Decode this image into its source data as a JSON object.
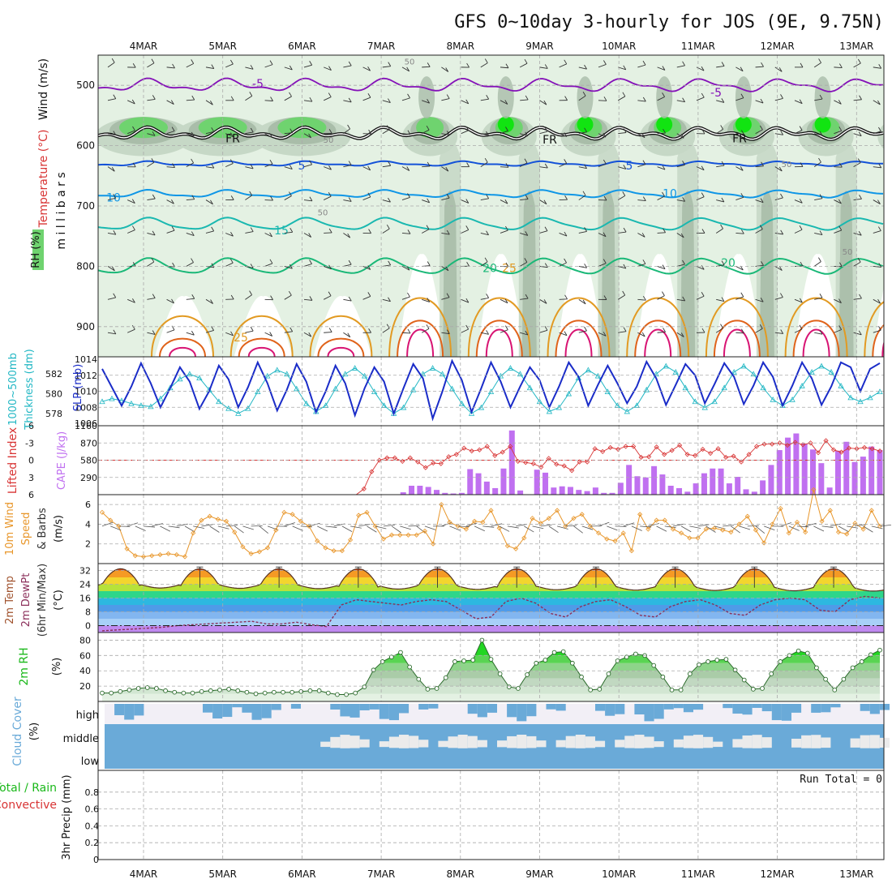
{
  "title": "GFS 0~10day 3-hourly for JOS (9E, 9.75N)",
  "dates": [
    "4MAR",
    "5MAR",
    "6MAR",
    "7MAR",
    "8MAR",
    "9MAR",
    "10MAR",
    "11MAR",
    "12MAR",
    "13MAR"
  ],
  "colors": {
    "rh_light": "#e4f1e3",
    "rh_mid": "#c6d8c6",
    "rh_dark": "#a9bda9",
    "rh_green": "#6fd36f",
    "rh_bright": "#11e411",
    "t_m5": "#8410b8",
    "t_fr": "#111111",
    "t_5": "#1452d8",
    "t_10": "#0f96e6",
    "t_15": "#1ab8b0",
    "t_20": "#1ab878",
    "t_25": "#e29a22",
    "t_30": "#e0631a",
    "t_35": "#d81473",
    "slp": "#1a2cc8",
    "thick": "#22b7c4",
    "li": "#d83434",
    "cape": "#c070f0",
    "wind_speed": "#e8962a",
    "barb": "#555555",
    "rh2m": "#1ab81a",
    "cloud": "#6aaad8"
  },
  "panel_labels": {
    "upper": {
      "wind": "Wind (m/s)",
      "temp": "Temperature (°C)",
      "rh": "RH (%)",
      "axis": "millibars"
    },
    "slp": {
      "left1": "1000~500mb",
      "left2": "Thickness (dm)",
      "right": "SLP (mb)"
    },
    "li_cape": {
      "left": "Lifted Index",
      "right": "CAPE (J/kg)"
    },
    "wind10": {
      "l1": "10m Wind",
      "l2": "Speed",
      "l3": "& Barbs",
      "unit": "(m/s)"
    },
    "temp2m": {
      "l1": "2m Temp",
      "l2": "2m DewPt",
      "l3": "(6hr Min/Max)",
      "unit": "(°C)"
    },
    "rh2m": {
      "l1": "2m RH",
      "unit": "(%)"
    },
    "cloud": {
      "l1": "Cloud Cover",
      "unit": "(%)",
      "high": "high",
      "middle": "middle",
      "low": "low"
    },
    "precip": {
      "l1": "Total / Rain",
      "l2": "Convective",
      "l3": "3hr Precip (mm)",
      "run_total": "Run Total = 0"
    }
  },
  "contour_labels": {
    "m5": "-5",
    "fr": "FR",
    "p5": "5",
    "p10": "10",
    "p15": "15",
    "p20": "20",
    "p25": "25",
    "p50": "50",
    "p30": "30",
    "p70": "70"
  },
  "chart_data": [
    {
      "type": "heatmap",
      "panel": "upper-air",
      "y_axis": {
        "label": "millibars",
        "ticks": [
          500,
          600,
          700,
          800,
          900
        ],
        "range": [
          450,
          950
        ]
      },
      "isotherm_levels_mb": {
        "-5": 500,
        "0": 580,
        "5": 630,
        "10": 680,
        "15": 730,
        "20": 800,
        "25": 860,
        "30": 910
      },
      "rh_levels": [
        30,
        50,
        70,
        90
      ]
    },
    {
      "type": "line",
      "panel": "thickness-slp",
      "left_axis": {
        "label": "1000~500mb Thickness (dm)",
        "ticks": [
          578,
          580,
          582
        ]
      },
      "right_axis": {
        "label": "SLP (mb)",
        "ticks": [
          1006,
          1008,
          1010,
          1012,
          1014
        ],
        "range": [
          1006,
          1014
        ]
      },
      "series": [
        {
          "name": "SLP (mb)",
          "values": [
            1012.8,
            1010.5,
            1008.2,
            1010.6,
            1013.5,
            1011.0,
            1008.0,
            1010.4,
            1013.0,
            1011.2,
            1007.8,
            1010.0,
            1013.2,
            1011.5,
            1008.0,
            1010.5,
            1013.6,
            1011.0,
            1007.6,
            1010.2,
            1013.4,
            1011.2,
            1007.4,
            1010.0,
            1013.2,
            1011.0,
            1007.0,
            1010.4,
            1013.0,
            1011.2,
            1007.2,
            1010.4,
            1013.4,
            1011.6,
            1006.6,
            1010.0,
            1013.8,
            1011.4,
            1007.4,
            1010.4,
            1013.6,
            1011.2,
            1008.0,
            1010.6,
            1013.0,
            1011.4,
            1008.0,
            1010.6,
            1013.6,
            1011.8,
            1008.2,
            1010.8,
            1013.2,
            1011.0,
            1008.5,
            1010.6,
            1013.7,
            1011.6,
            1008.3,
            1010.8,
            1013.4,
            1012.0,
            1008.5,
            1010.9,
            1013.5,
            1011.8,
            1008.4,
            1010.7,
            1013.6,
            1011.8,
            1008.2,
            1010.7,
            1013.6,
            1011.6,
            1008.3,
            1010.6,
            1013.6,
            1013.0,
            1010.0,
            1012.8,
            1013.5
          ]
        },
        {
          "name": "1000~500mb Thickness (dm)",
          "values": [
            579.2,
            579.5,
            579.3,
            579.0,
            578.8,
            578.7,
            579.5,
            580.6,
            581.5,
            582.0,
            581.6,
            580.4,
            579.2,
            578.5,
            578.0,
            578.5,
            580.2,
            581.8,
            582.4,
            582.0,
            580.5,
            579.0,
            578.2,
            578.8,
            580.5,
            582.0,
            582.6,
            581.8,
            580.2,
            578.8,
            578.0,
            578.6,
            580.4,
            582.0,
            582.6,
            582.0,
            580.5,
            579.0,
            578.0,
            578.6,
            580.2,
            581.8,
            582.6,
            582.0,
            580.6,
            579.2,
            578.2,
            578.6,
            580.0,
            581.6,
            582.4,
            581.8,
            580.2,
            578.8,
            578.2,
            578.8,
            580.4,
            582.0,
            582.8,
            582.2,
            580.6,
            579.2,
            578.6,
            579.2,
            580.6,
            582.2,
            582.8,
            582.0,
            580.6,
            579.4,
            578.8,
            579.4,
            580.8,
            582.2,
            582.8,
            582.2,
            580.8,
            579.6,
            579.2,
            579.6,
            580.2
          ]
        }
      ]
    },
    {
      "type": "bar",
      "panel": "lifted-index-cape",
      "left_axis": {
        "label": "Lifted Index",
        "ticks": [
          -6,
          -3,
          0,
          3,
          6
        ],
        "range": [
          -6,
          6
        ]
      },
      "right_axis": {
        "label": "CAPE (J/kg)",
        "ticks": [
          290,
          580,
          870,
          1160
        ],
        "range": [
          0,
          1160
        ]
      },
      "series": [
        {
          "name": "CAPE (J/kg)",
          "values": [
            0,
            0,
            0,
            0,
            0,
            0,
            0,
            0,
            0,
            0,
            0,
            0,
            0,
            0,
            0,
            0,
            0,
            0,
            0,
            0,
            0,
            0,
            0,
            0,
            0,
            0,
            0,
            0,
            0,
            0,
            0,
            0,
            0,
            0,
            0,
            0,
            40,
            150,
            150,
            130,
            80,
            30,
            20,
            30,
            430,
            360,
            220,
            110,
            440,
            1080,
            70,
            0,
            420,
            370,
            120,
            140,
            130,
            80,
            60,
            120,
            30,
            30,
            200,
            500,
            310,
            290,
            480,
            340,
            150,
            110,
            50,
            190,
            360,
            440,
            440,
            190,
            300,
            90,
            50,
            240,
            500,
            750,
            960,
            1030,
            860,
            760,
            530,
            120,
            740,
            890,
            550,
            640,
            810,
            750
          ]
        },
        {
          "name": "Lifted Index",
          "values": [
            6,
            6,
            6,
            6,
            6,
            6,
            6,
            6,
            6,
            6,
            6,
            6,
            6,
            6,
            6,
            6,
            6,
            6,
            6,
            6,
            6,
            6,
            6,
            6,
            6,
            6,
            6,
            6,
            6,
            6,
            6,
            6,
            6,
            6,
            5,
            2,
            0,
            -0.4,
            -0.4,
            0.2,
            -0.4,
            0.3,
            1.3,
            0.5,
            0.6,
            -0.6,
            -1.0,
            -2.1,
            -1.6,
            -1.8,
            -2.4,
            -0.8,
            -1.4,
            -2.4,
            0.2,
            0.4,
            0.6,
            1.2,
            -0.3,
            0.7,
            1.0,
            1.8,
            0.3,
            0.3,
            -2.0,
            -1.5,
            -2.2,
            -1.9,
            -2.4,
            -2.4,
            -0.5,
            -0.6,
            -2.3,
            -1.0,
            -1.7,
            -2.6,
            -1.0,
            -0.8,
            -1.9,
            -1.2,
            -2.0,
            -0.5,
            -0.7,
            0.3,
            -1.0,
            -2.4,
            -2.8,
            -2.8,
            -3.0,
            -2.6,
            -3.1,
            -2.7,
            -3.0,
            -1.3,
            -3.4,
            -1.8,
            -1.4,
            -2.1,
            -2.0,
            -2.2,
            -2.0,
            -1.6
          ]
        }
      ]
    },
    {
      "type": "line",
      "panel": "10m-wind",
      "y_axis": {
        "label": "Speed & Barbs (m/s)",
        "ticks": [
          2,
          4,
          6
        ],
        "range": [
          0,
          7
        ]
      },
      "series": [
        {
          "name": "10m Wind Speed",
          "values": [
            5.2,
            4.4,
            3.8,
            1.5,
            0.8,
            0.7,
            0.8,
            0.9,
            1.0,
            0.9,
            0.7,
            3.1,
            4.4,
            4.8,
            4.5,
            4.3,
            3.2,
            1.7,
            1.0,
            1.2,
            1.6,
            3.4,
            5.2,
            5.0,
            4.3,
            3.8,
            2.3,
            1.6,
            1.3,
            1.3,
            2.4,
            4.9,
            5.2,
            3.8,
            2.5,
            2.9,
            2.9,
            2.9,
            2.9,
            3.3,
            2.0,
            6.0,
            4.2,
            3.8,
            3.5,
            4.3,
            4.2,
            5.4,
            3.6,
            1.8,
            1.5,
            2.6,
            4.6,
            4.1,
            4.6,
            5.4,
            3.8,
            4.6,
            5.0,
            3.8,
            3.1,
            2.5,
            2.3,
            3.1,
            1.3,
            5.0,
            3.5,
            4.4,
            4.4,
            3.5,
            3.1,
            2.6,
            2.6,
            3.5,
            3.6,
            3.4,
            3.2,
            4.0,
            4.8,
            3.4,
            2.1,
            4.0,
            5.6,
            3.1,
            4.2,
            3.2,
            7.5,
            4.3,
            5.4,
            3.2,
            3.0,
            4.1,
            3.5,
            5.4,
            3.8
          ]
        }
      ]
    },
    {
      "type": "area",
      "panel": "2m-temp",
      "y_axis": {
        "label": "2m Temp / 2m DewPt (6hr Min/Max) (°C)",
        "ticks": [
          0,
          8,
          16,
          24,
          32
        ],
        "range": [
          -4,
          36
        ]
      },
      "series": [
        {
          "name": "2m Temp",
          "daily_min": 22,
          "daily_max": [
            31,
            33,
            33,
            33,
            33,
            33,
            33,
            33,
            33,
            33
          ]
        },
        {
          "name": "2m DewPt",
          "values": [
            -3,
            -2.5,
            -2,
            -1.5,
            -1,
            0,
            0.5,
            1,
            1.5,
            2,
            2.5,
            1,
            1,
            2,
            0.5,
            -0.5,
            12,
            15,
            14,
            13,
            12,
            14,
            15,
            14,
            9,
            4,
            5,
            14,
            16,
            13,
            7,
            5,
            11,
            14,
            15,
            11,
            6,
            5,
            11,
            14,
            15,
            12,
            7,
            6,
            12,
            15,
            16,
            15,
            9,
            8,
            15,
            17,
            16
          ]
        }
      ]
    },
    {
      "type": "area",
      "panel": "2m-rh",
      "y_axis": {
        "label": "2m RH (%)",
        "ticks": [
          20,
          40,
          60,
          80
        ],
        "range": [
          0,
          90
        ]
      },
      "series": [
        {
          "name": "2m RH",
          "values": [
            11,
            11,
            13,
            15,
            17,
            18,
            17,
            14,
            12,
            11,
            11,
            13,
            14,
            15,
            16,
            14,
            12,
            10,
            11,
            12,
            12,
            12,
            13,
            14,
            14,
            11,
            9,
            9,
            11,
            19,
            41,
            52,
            58,
            64,
            45,
            29,
            16,
            17,
            31,
            52,
            53,
            54,
            80,
            55,
            36,
            19,
            17,
            35,
            50,
            54,
            64,
            65,
            50,
            32,
            15,
            16,
            36,
            53,
            58,
            62,
            60,
            47,
            32,
            15,
            15,
            36,
            48,
            52,
            54,
            55,
            41,
            28,
            16,
            17,
            36,
            52,
            60,
            66,
            63,
            44,
            29,
            15,
            29,
            44,
            52,
            61,
            67
          ]
        }
      ]
    },
    {
      "type": "heatmap",
      "panel": "cloud-cover",
      "rows": [
        "high",
        "middle",
        "low"
      ]
    },
    {
      "type": "line",
      "panel": "3hr-precip",
      "y_axis": {
        "label": "3hr Precip (mm)",
        "ticks": [
          0,
          0.2,
          0.4,
          0.6,
          0.8
        ],
        "range": [
          0,
          1.0
        ]
      },
      "series": [
        {
          "name": "Total / Rain",
          "values": []
        },
        {
          "name": "Convective",
          "values": []
        }
      ]
    }
  ]
}
